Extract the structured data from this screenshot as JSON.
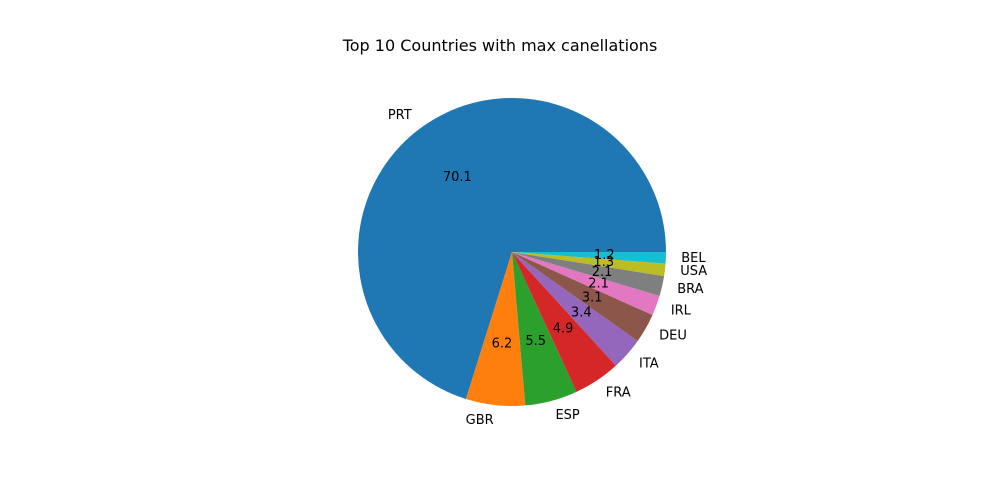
{
  "chart_data": {
    "type": "pie",
    "title": "Top 10 Countries with max canellations",
    "categories": [
      "PRT",
      "GBR",
      "ESP",
      "FRA",
      "ITA",
      "DEU",
      "IRL",
      "BRA",
      "USA",
      "BEL"
    ],
    "values": [
      70.1,
      6.2,
      5.5,
      4.9,
      3.4,
      3.1,
      2.1,
      2.1,
      1.3,
      1.2
    ],
    "value_labels": [
      "70.1",
      "6.2",
      "5.5",
      "4.9",
      "3.4",
      "3.1",
      "2.1",
      "2.1",
      "1.3",
      "1.2"
    ],
    "colors": [
      "#1f77b4",
      "#ff7f0e",
      "#2ca02c",
      "#d62728",
      "#9467bd",
      "#8c564b",
      "#e377c2",
      "#7f7f7f",
      "#bcbd22",
      "#17becf"
    ],
    "start_angle_deg": 0,
    "direction": "counterclockwise",
    "legend": "none"
  }
}
